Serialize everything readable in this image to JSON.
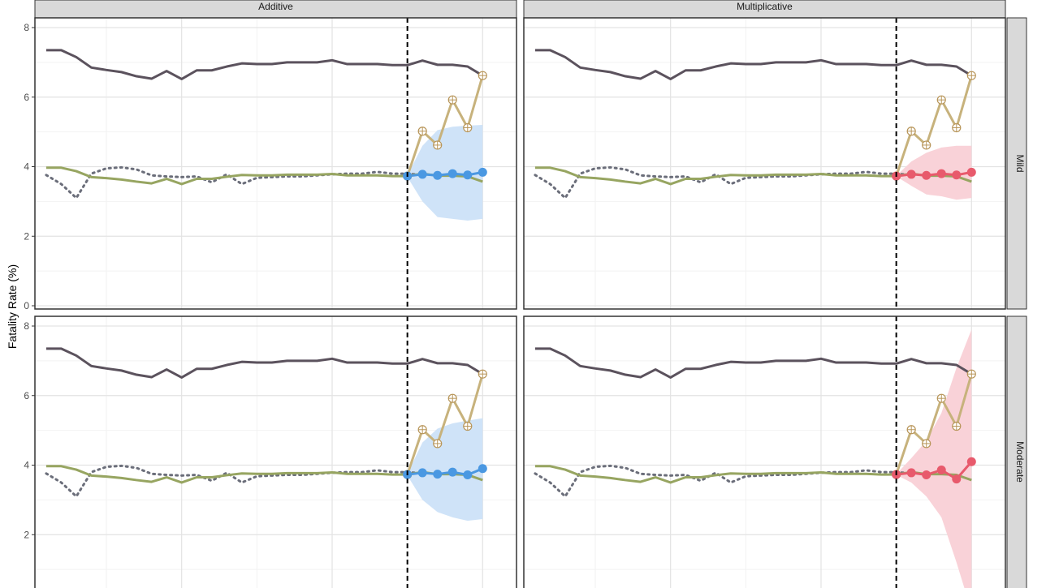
{
  "colors": {
    "observed": "#5b525d",
    "dotted": "#6b6e7a",
    "fitted": "#97a561",
    "actual": "#c7b27c",
    "additive": "#4a98e2",
    "additive_band": "#cfe3f8",
    "multiplicative": "#e85a6c",
    "multiplicative_band": "#f9d2d8",
    "strip_bg": "#d9d9d9",
    "grid_major": "#e3e3e3",
    "grid_minor": "#f2f2f2"
  },
  "chart_data": {
    "type": "line",
    "ylabel": "Fatality Rate (%)",
    "xlabel": "",
    "col_facets": [
      "Additive",
      "Multiplicative"
    ],
    "row_facets": [
      "Mild",
      "Moderate"
    ],
    "ylim": [
      0,
      8
    ],
    "yticks": [
      0,
      2,
      4,
      6,
      8
    ],
    "x": [
      1,
      2,
      3,
      4,
      5,
      6,
      7,
      8,
      9,
      10,
      11,
      12,
      13,
      14,
      15,
      16,
      17,
      18,
      19,
      20,
      21,
      22,
      23,
      24,
      25,
      26,
      27,
      28,
      29,
      30,
      31
    ],
    "intervention_x": 25,
    "series": {
      "observed": [
        7.35,
        7.35,
        7.15,
        6.85,
        6.78,
        6.72,
        6.6,
        6.53,
        6.75,
        6.52,
        6.77,
        6.77,
        6.88,
        6.97,
        6.95,
        6.95,
        7.0,
        7.0,
        7.0,
        7.06,
        6.95,
        6.95,
        6.95,
        6.92,
        6.92,
        7.05,
        6.93,
        6.93,
        6.88,
        6.62
      ],
      "dotted": [
        3.76,
        3.5,
        3.1,
        3.8,
        3.95,
        3.98,
        3.92,
        3.75,
        3.72,
        3.7,
        3.72,
        3.55,
        3.78,
        3.5,
        3.68,
        3.7,
        3.72,
        3.72,
        3.75,
        3.78,
        3.8,
        3.8,
        3.85,
        3.8,
        3.8,
        3.76
      ],
      "fitted": [
        3.97,
        3.97,
        3.87,
        3.7,
        3.67,
        3.63,
        3.57,
        3.52,
        3.65,
        3.5,
        3.65,
        3.65,
        3.71,
        3.76,
        3.75,
        3.75,
        3.77,
        3.77,
        3.77,
        3.79,
        3.75,
        3.75,
        3.75,
        3.73,
        3.73,
        3.8,
        3.74,
        3.74,
        3.72,
        3.57
      ],
      "actual_x": [
        25,
        26,
        27,
        28,
        29,
        30
      ],
      "actual": [
        3.73,
        5.02,
        4.62,
        5.92,
        5.12,
        6.62
      ]
    },
    "panels": [
      {
        "col": "Additive",
        "row": "Mild",
        "forecast": [
          3.73,
          3.78,
          3.75,
          3.8,
          3.76,
          3.84
        ],
        "lower": [
          3.7,
          3.0,
          2.55,
          2.5,
          2.45,
          2.5
        ],
        "upper": [
          3.75,
          4.6,
          5.05,
          5.15,
          5.18,
          5.2
        ]
      },
      {
        "col": "Multiplicative",
        "row": "Mild",
        "forecast": [
          3.73,
          3.78,
          3.75,
          3.8,
          3.76,
          3.84
        ],
        "lower": [
          3.72,
          3.45,
          3.2,
          3.15,
          3.05,
          3.1
        ],
        "upper": [
          3.74,
          4.15,
          4.4,
          4.55,
          4.6,
          4.6
        ]
      },
      {
        "col": "Additive",
        "row": "Moderate",
        "forecast": [
          3.73,
          3.78,
          3.74,
          3.8,
          3.72,
          3.9
        ],
        "lower": [
          3.7,
          3.0,
          2.65,
          2.5,
          2.4,
          2.45
        ],
        "upper": [
          3.75,
          4.65,
          5.05,
          5.2,
          5.28,
          5.35
        ]
      },
      {
        "col": "Multiplicative",
        "row": "Moderate",
        "forecast": [
          3.73,
          3.78,
          3.72,
          3.86,
          3.6,
          4.1
        ],
        "lower": [
          3.72,
          3.5,
          3.1,
          2.5,
          1.2,
          -0.2
        ],
        "upper": [
          3.74,
          4.2,
          4.7,
          5.5,
          6.8,
          7.9
        ]
      }
    ]
  }
}
